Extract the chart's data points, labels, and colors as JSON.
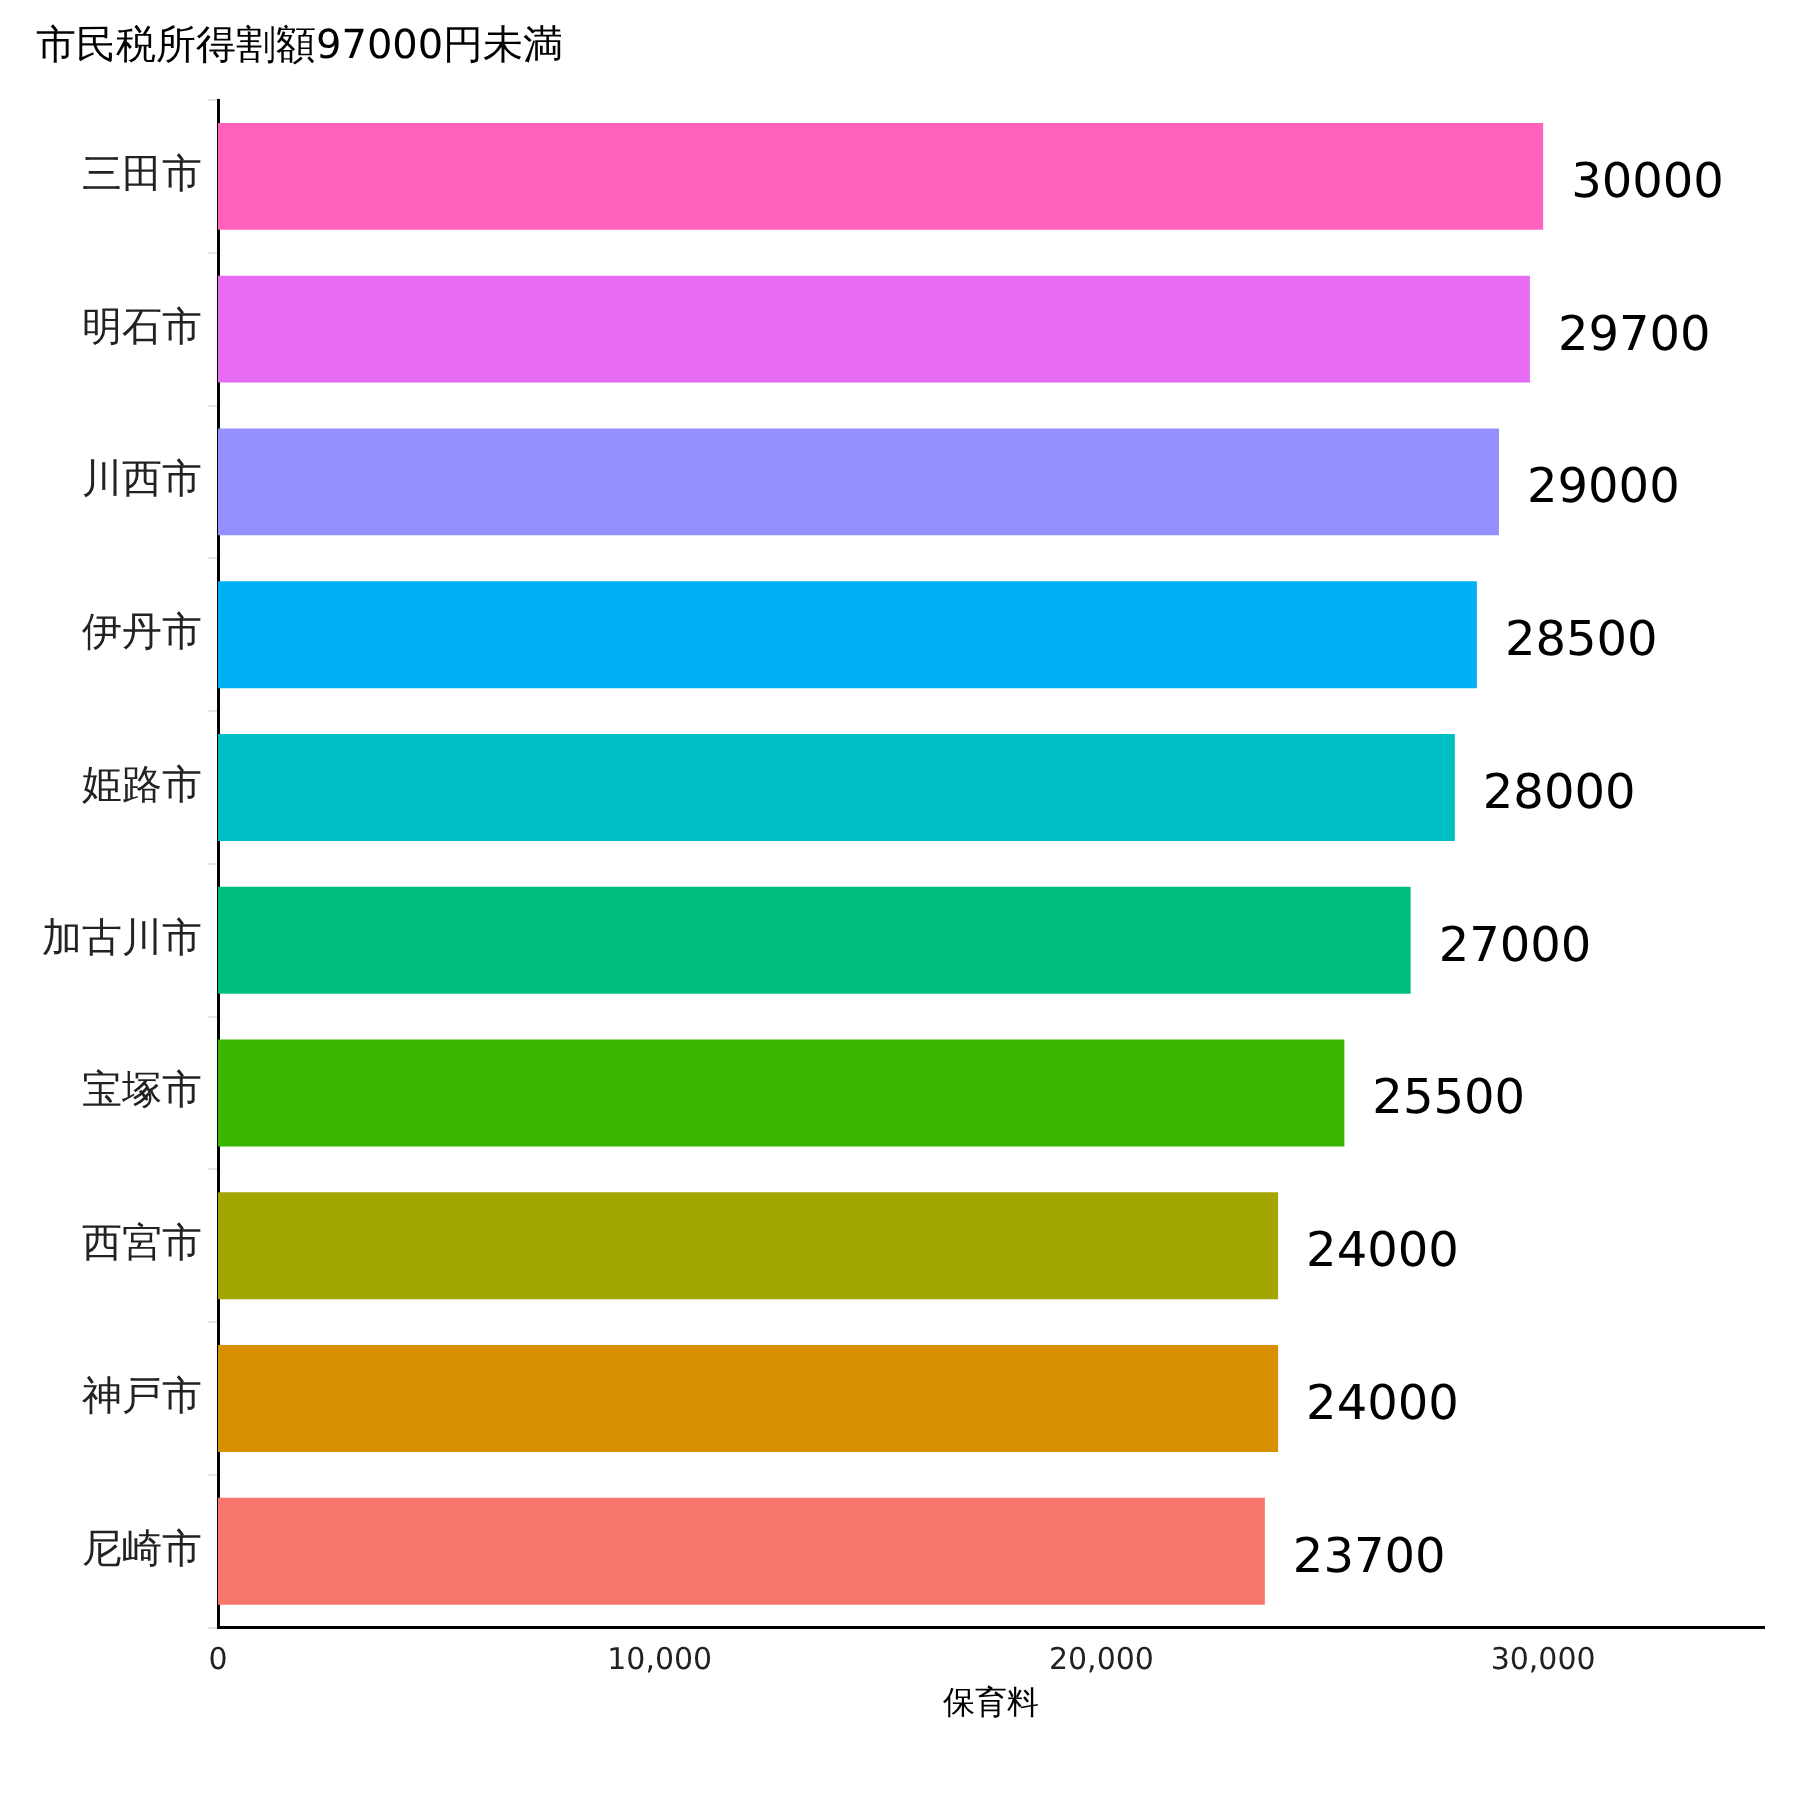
{
  "chart_data": {
    "type": "bar",
    "orientation": "horizontal",
    "title": "市民税所得割額97000円未満",
    "xlabel": "保育料",
    "categories": [
      "三田市",
      "明石市",
      "川西市",
      "伊丹市",
      "姫路市",
      "加古川市",
      "宝塚市",
      "西宮市",
      "神戸市",
      "尼崎市"
    ],
    "values": [
      30000,
      29700,
      29000,
      28500,
      28000,
      27000,
      25500,
      24000,
      24000,
      23700
    ],
    "colors": [
      "#ff62bc",
      "#e76bf3",
      "#9590ff",
      "#00b0f6",
      "#00bfc4",
      "#00bf7d",
      "#39b600",
      "#a3a500",
      "#d89000",
      "#f8766d"
    ],
    "xlim": [
      0,
      35000
    ],
    "xticks": [
      {
        "value": 0,
        "label": "0"
      },
      {
        "value": 10000,
        "label": "10,000"
      },
      {
        "value": 20000,
        "label": "20,000"
      },
      {
        "value": 30000,
        "label": "30,000"
      }
    ],
    "data_labels": true
  }
}
